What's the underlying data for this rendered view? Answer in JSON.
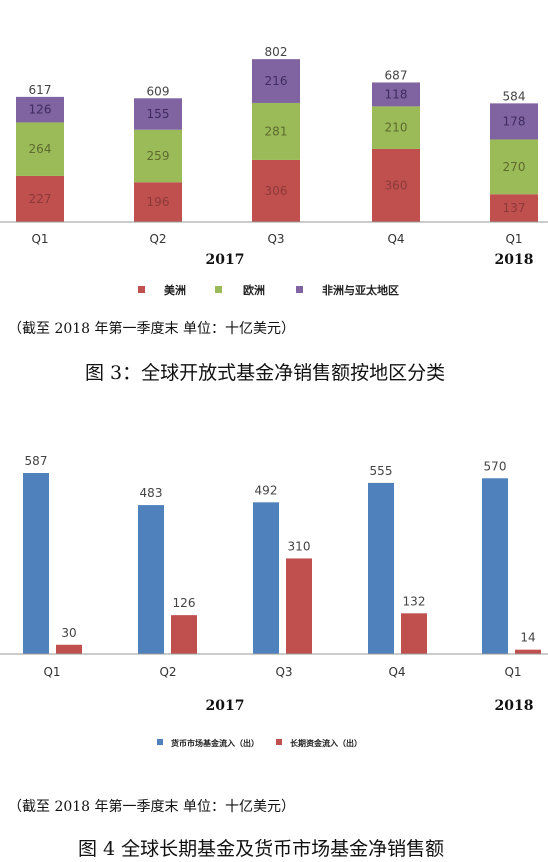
{
  "chart_data": [
    {
      "type": "bar",
      "stacked": true,
      "categories": [
        "Q1",
        "Q2",
        "Q3",
        "Q4",
        "Q1"
      ],
      "year_labels": [
        "2017",
        "2018"
      ],
      "series": [
        {
          "name": "美洲",
          "color": "#c0504d",
          "values": [
            227,
            196,
            306,
            360,
            137
          ]
        },
        {
          "name": "欧洲",
          "color": "#9bbb59",
          "values": [
            264,
            259,
            281,
            210,
            270
          ]
        },
        {
          "name": "非洲与亚太地区",
          "color": "#8064a2",
          "values": [
            126,
            155,
            216,
            118,
            178
          ]
        }
      ],
      "totals": [
        617,
        609,
        802,
        687,
        584
      ],
      "legend": "bottom"
    },
    {
      "type": "bar",
      "categories": [
        "Q1",
        "Q2",
        "Q3",
        "Q4",
        "Q1"
      ],
      "year_labels": [
        "2017",
        "2018"
      ],
      "series": [
        {
          "name": "货币市场基金流入（出）",
          "color": "#4f81bd",
          "values": [
            587,
            483,
            492,
            555,
            570
          ]
        },
        {
          "name": "长期资金流入（出）",
          "color": "#c0504d",
          "values": [
            30,
            126,
            310,
            132,
            14
          ]
        }
      ],
      "legend": "bottom"
    }
  ],
  "notes": {
    "note1": "（截至 2018 年第一季度末   单位：十亿美元）",
    "note2": "（截至 2018 年第一季度末   单位：十亿美元）"
  },
  "captions": {
    "fig3": "图 3：全球开放式基金净销售额按地区分类",
    "fig4": "图 4   全球长期基金及货币市场基金净销售额"
  }
}
